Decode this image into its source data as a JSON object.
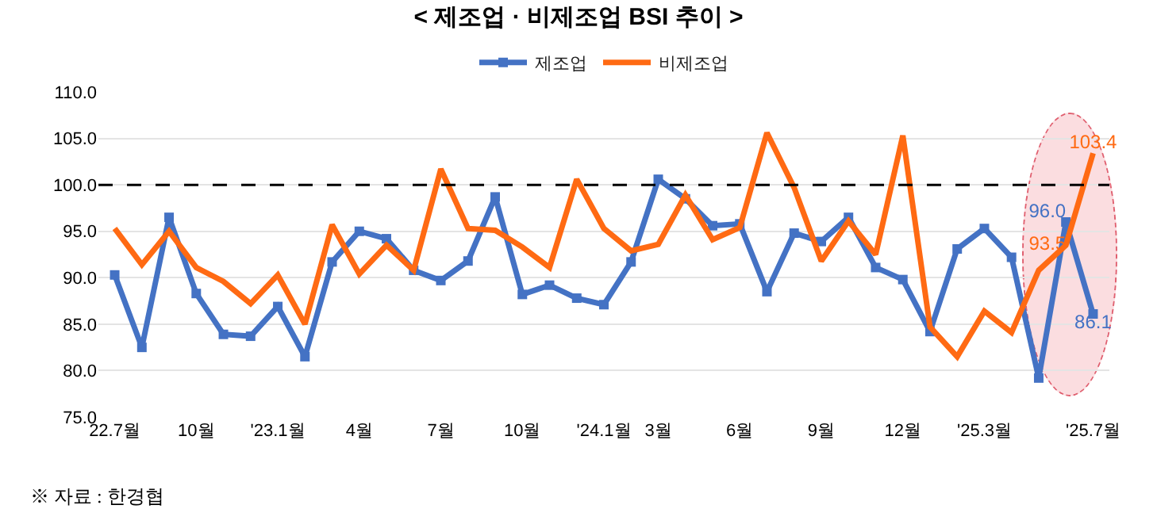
{
  "chart_data": {
    "type": "line",
    "title": "< 제조업 · 비제조업 BSI 추이 >",
    "categories": [
      "22.7월",
      null,
      null,
      "10월",
      null,
      null,
      "'23.1월",
      null,
      null,
      "4월",
      null,
      null,
      "7월",
      null,
      null,
      "10월",
      null,
      null,
      "'24.1월",
      null,
      "3월",
      null,
      null,
      "6월",
      null,
      null,
      "9월",
      null,
      null,
      "12월",
      null,
      null,
      "'25.3월",
      null,
      null,
      null,
      "'25.7월"
    ],
    "series": [
      {
        "name": "제조업",
        "color": "#4472c4",
        "marker": "square",
        "values": [
          90.3,
          82.5,
          96.5,
          88.3,
          83.9,
          83.7,
          86.9,
          81.5,
          91.7,
          95.0,
          94.2,
          90.8,
          89.7,
          91.8,
          98.7,
          88.2,
          89.2,
          87.8,
          87.1,
          91.7,
          100.6,
          98.5,
          95.6,
          95.8,
          88.5,
          94.8,
          93.9,
          96.5,
          91.1,
          89.8,
          84.2,
          93.1,
          95.3,
          92.2,
          79.2,
          96.0,
          86.1
        ],
        "value_labels": [
          null,
          null,
          null,
          null,
          null,
          null,
          null,
          null,
          null,
          null,
          null,
          null,
          null,
          null,
          null,
          null,
          null,
          null,
          null,
          null,
          null,
          null,
          null,
          null,
          null,
          null,
          null,
          null,
          null,
          null,
          null,
          null,
          null,
          null,
          null,
          "96.0",
          "86.1"
        ]
      },
      {
        "name": "비제조업",
        "color": "#ff6a13",
        "values": [
          95.3,
          91.4,
          95.0,
          91.1,
          89.6,
          87.2,
          90.3,
          85.0,
          95.7,
          90.4,
          93.5,
          90.8,
          101.7,
          95.3,
          95.1,
          93.3,
          91.1,
          100.6,
          95.3,
          92.9,
          93.6,
          98.9,
          94.1,
          95.4,
          105.6,
          99.7,
          91.8,
          96.1,
          92.5,
          105.3,
          84.7,
          81.5,
          86.4,
          84.1,
          90.8,
          93.5,
          103.4
        ],
        "value_labels": [
          null,
          null,
          null,
          null,
          null,
          null,
          null,
          null,
          null,
          null,
          null,
          null,
          null,
          null,
          null,
          null,
          null,
          null,
          null,
          null,
          null,
          null,
          null,
          null,
          null,
          null,
          null,
          null,
          null,
          null,
          null,
          null,
          null,
          null,
          null,
          "93.5",
          "103.4"
        ]
      }
    ],
    "ylim": [
      75,
      110
    ],
    "yticks": [
      {
        "value": 75,
        "label": "75.0"
      },
      {
        "value": 80,
        "label": "80.0"
      },
      {
        "value": 85,
        "label": "85.0"
      },
      {
        "value": 90,
        "label": "90.0"
      },
      {
        "value": 95,
        "label": "95.0"
      },
      {
        "value": 100,
        "label": "100.0"
      },
      {
        "value": 105,
        "label": "105.0"
      },
      {
        "value": 110,
        "label": "110.0"
      }
    ],
    "grid": "y",
    "legend": "top",
    "line_style": "solid",
    "ref_lines": [
      {
        "axis": "y",
        "value": 100,
        "color": "#000000",
        "line_style": "dashed"
      }
    ],
    "annotations": [
      "※ 자료 : 한경협"
    ]
  }
}
